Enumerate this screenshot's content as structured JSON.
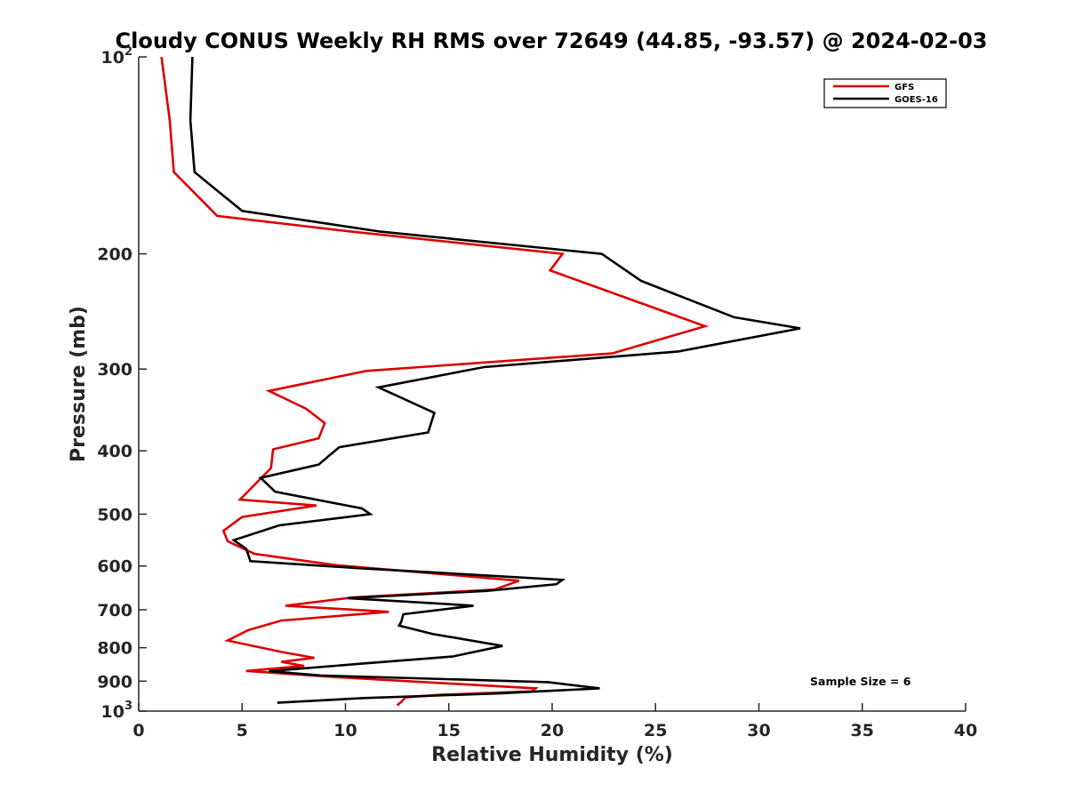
{
  "chart_data": {
    "type": "line",
    "title": "Cloudy CONUS Weekly RH RMS over 72649 (44.85, -93.57) @ 2024-02-03",
    "xlabel": "Relative Humidity (%)",
    "ylabel": "Pressure (mb)",
    "xlim": [
      0,
      40
    ],
    "ylim": [
      100,
      1000
    ],
    "y_scale": "log",
    "y_reversed": true,
    "x_ticks": [
      "0",
      "5",
      "10",
      "15",
      "20",
      "25",
      "30",
      "35",
      "40"
    ],
    "y_ticks": [
      {
        "value": 100,
        "label": "10",
        "sup": "2"
      },
      {
        "value": 200,
        "label": "200",
        "sup": ""
      },
      {
        "value": 300,
        "label": "300",
        "sup": ""
      },
      {
        "value": 400,
        "label": "400",
        "sup": ""
      },
      {
        "value": 500,
        "label": "500",
        "sup": ""
      },
      {
        "value": 600,
        "label": "600",
        "sup": ""
      },
      {
        "value": 700,
        "label": "700",
        "sup": ""
      },
      {
        "value": 800,
        "label": "800",
        "sup": ""
      },
      {
        "value": 900,
        "label": "900",
        "sup": ""
      },
      {
        "value": 1000,
        "label": "10",
        "sup": "3"
      }
    ],
    "grid": false,
    "legend_position": "top-right",
    "annotation": "Sample Size = 6",
    "series": [
      {
        "name": "GFS",
        "color": "#dd0000",
        "points": [
          [
            1.1,
            100
          ],
          [
            1.5,
            125
          ],
          [
            1.7,
            150
          ],
          [
            3.8,
            175
          ],
          [
            10.3,
            185
          ],
          [
            20.5,
            200
          ],
          [
            19.9,
            212
          ],
          [
            27.4,
            258
          ],
          [
            22.9,
            284
          ],
          [
            11.0,
            302
          ],
          [
            6.3,
            324
          ],
          [
            8.1,
            345
          ],
          [
            9.0,
            363
          ],
          [
            8.7,
            383
          ],
          [
            6.5,
            398
          ],
          [
            6.4,
            425
          ],
          [
            4.9,
            475
          ],
          [
            8.6,
            485
          ],
          [
            5.0,
            505
          ],
          [
            4.1,
            530
          ],
          [
            4.3,
            550
          ],
          [
            5.6,
            575
          ],
          [
            9.5,
            598
          ],
          [
            18.4,
            632
          ],
          [
            17.2,
            652
          ],
          [
            10.4,
            670
          ],
          [
            7.1,
            690
          ],
          [
            12.1,
            705
          ],
          [
            6.9,
            727
          ],
          [
            5.3,
            752
          ],
          [
            4.3,
            780
          ],
          [
            6.9,
            812
          ],
          [
            8.5,
            829
          ],
          [
            6.9,
            841
          ],
          [
            8.0,
            853
          ],
          [
            5.2,
            868
          ],
          [
            9.7,
            888
          ],
          [
            19.2,
            923
          ],
          [
            19.0,
            933
          ],
          [
            14.6,
            944
          ],
          [
            12.9,
            953
          ],
          [
            12.7,
            968
          ],
          [
            12.5,
            980
          ]
        ]
      },
      {
        "name": "GOES-16",
        "color": "#000000",
        "points": [
          [
            2.6,
            100
          ],
          [
            2.5,
            125
          ],
          [
            2.7,
            150
          ],
          [
            5.0,
            172
          ],
          [
            11.7,
            185
          ],
          [
            22.4,
            200
          ],
          [
            24.3,
            220
          ],
          [
            28.8,
            250
          ],
          [
            32.0,
            260
          ],
          [
            26.1,
            282
          ],
          [
            16.7,
            298
          ],
          [
            11.6,
            320
          ],
          [
            14.3,
            350
          ],
          [
            14.0,
            375
          ],
          [
            9.7,
            395
          ],
          [
            8.7,
            420
          ],
          [
            5.9,
            440
          ],
          [
            6.6,
            462
          ],
          [
            10.8,
            490
          ],
          [
            11.2,
            500
          ],
          [
            6.8,
            520
          ],
          [
            4.6,
            548
          ],
          [
            5.2,
            565
          ],
          [
            5.4,
            590
          ],
          [
            10.8,
            605
          ],
          [
            20.5,
            630
          ],
          [
            20.2,
            640
          ],
          [
            16.8,
            655
          ],
          [
            10.1,
            672
          ],
          [
            16.2,
            690
          ],
          [
            12.8,
            711
          ],
          [
            12.7,
            730
          ],
          [
            12.6,
            740
          ],
          [
            14.2,
            762
          ],
          [
            17.6,
            795
          ],
          [
            15.2,
            825
          ],
          [
            11.0,
            845
          ],
          [
            6.3,
            869
          ],
          [
            8.8,
            882
          ],
          [
            19.8,
            903
          ],
          [
            22.3,
            923
          ],
          [
            17.3,
            940
          ],
          [
            10.9,
            955
          ],
          [
            6.7,
            971
          ]
        ]
      }
    ]
  }
}
